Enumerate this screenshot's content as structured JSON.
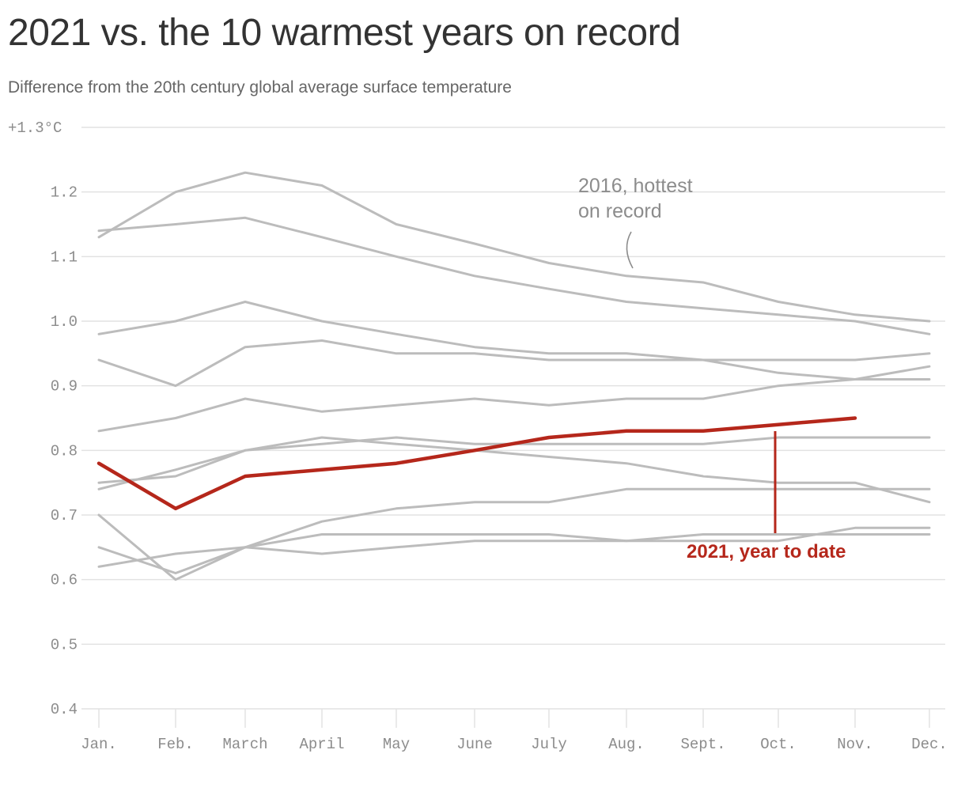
{
  "title": "2021 vs. the 10 warmest years on record",
  "subtitle": "Difference from the 20th century global average surface temperature",
  "colors": {
    "highlight": "#b5271b",
    "context": "#bcbcbc",
    "grid": "#e2e2e2",
    "tick_text": "#8c8c8c",
    "title": "#333333"
  },
  "chart_data": {
    "type": "line",
    "categories": [
      "Jan.",
      "Feb.",
      "March",
      "April",
      "May",
      "June",
      "July",
      "Aug.",
      "Sept.",
      "Oct.",
      "Nov.",
      "Dec."
    ],
    "ylim": [
      0.4,
      1.3
    ],
    "yticks": [
      0.4,
      0.5,
      0.6,
      0.7,
      0.8,
      0.9,
      1.0,
      1.1,
      1.2,
      1.3
    ],
    "ytick_labels": [
      "0.4",
      "0.5",
      "0.6",
      "0.7",
      "0.8",
      "0.9",
      "1.0",
      "1.1",
      "1.2",
      "+1.3°C"
    ],
    "grid": true,
    "highlight_series": {
      "name": "2021, year to date",
      "values": [
        0.78,
        0.71,
        0.76,
        0.77,
        0.78,
        0.8,
        0.82,
        0.83,
        0.83,
        0.84,
        0.85
      ]
    },
    "background_series": [
      {
        "values": [
          1.13,
          1.2,
          1.23,
          1.21,
          1.15,
          1.12,
          1.09,
          1.07,
          1.06,
          1.03,
          1.01,
          1.0
        ]
      },
      {
        "values": [
          1.14,
          1.15,
          1.16,
          1.13,
          1.1,
          1.07,
          1.05,
          1.03,
          1.02,
          1.01,
          1.0,
          0.98
        ]
      },
      {
        "values": [
          0.98,
          1.0,
          1.03,
          1.0,
          0.98,
          0.96,
          0.95,
          0.95,
          0.94,
          0.92,
          0.91,
          0.91
        ]
      },
      {
        "values": [
          0.94,
          0.9,
          0.96,
          0.97,
          0.95,
          0.95,
          0.94,
          0.94,
          0.94,
          0.94,
          0.94,
          0.95
        ]
      },
      {
        "values": [
          0.83,
          0.85,
          0.88,
          0.86,
          0.87,
          0.88,
          0.87,
          0.88,
          0.88,
          0.9,
          0.91,
          0.93
        ]
      },
      {
        "values": [
          0.75,
          0.76,
          0.8,
          0.82,
          0.81,
          0.8,
          0.79,
          0.78,
          0.76,
          0.75,
          0.75,
          0.72
        ]
      },
      {
        "values": [
          0.74,
          0.77,
          0.8,
          0.81,
          0.82,
          0.81,
          0.81,
          0.81,
          0.81,
          0.82,
          0.82,
          0.82
        ]
      },
      {
        "values": [
          0.7,
          0.6,
          0.65,
          0.69,
          0.71,
          0.72,
          0.72,
          0.74,
          0.74,
          0.74,
          0.74,
          0.74
        ]
      },
      {
        "values": [
          0.65,
          0.61,
          0.65,
          0.67,
          0.67,
          0.67,
          0.67,
          0.66,
          0.67,
          0.67,
          0.67,
          0.67
        ]
      },
      {
        "values": [
          0.62,
          0.64,
          0.65,
          0.64,
          0.65,
          0.66,
          0.66,
          0.66,
          0.66,
          0.66,
          0.68,
          0.68
        ]
      }
    ],
    "annotations": [
      {
        "text_lines": [
          "2016, hottest",
          "on record"
        ]
      },
      {
        "text_lines": [
          "2021, year to date"
        ]
      }
    ]
  }
}
